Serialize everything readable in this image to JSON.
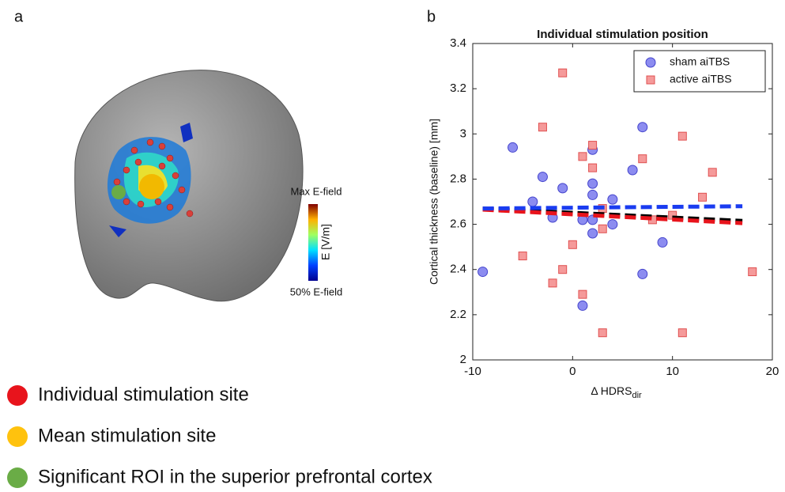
{
  "panel_labels": [
    "a",
    "b"
  ],
  "brain_figure": {
    "colorbar": {
      "top_label": "Max E-field",
      "axis_label": "E [V/m]",
      "bottom_label": "50% E-field"
    },
    "legend": [
      {
        "label": "Individual stimulation site",
        "color": "#e8141c"
      },
      {
        "label": "Mean stimulation site",
        "color": "#ffc20e"
      },
      {
        "label": "Significant ROI in the superior prefrontal cortex",
        "color": "#6aac46"
      }
    ]
  },
  "chart_data": {
    "type": "scatter",
    "title": "Individual stimulation position",
    "xlabel": "Δ HDRS",
    "xlabel_sub": "dir",
    "ylabel": "Cortical thickness (baseline) [mm]",
    "xlim": [
      -10,
      20
    ],
    "xticks": [
      -10,
      0,
      10,
      20
    ],
    "ylim": [
      2,
      3.4
    ],
    "yticks": [
      2,
      2.2,
      2.4,
      2.6,
      2.8,
      3,
      3.2,
      3.4
    ],
    "legend": "upper right",
    "series": [
      {
        "name": "sham aiTBS",
        "color": "#8c8cf0",
        "marker": "circle",
        "x": [
          -9,
          -6,
          -4,
          -3,
          -2,
          -1,
          1,
          1,
          2,
          2,
          2,
          2,
          2,
          4,
          4,
          6,
          7,
          7,
          9
        ],
        "values": [
          2.39,
          2.94,
          2.7,
          2.81,
          2.63,
          2.76,
          2.24,
          2.62,
          2.93,
          2.78,
          2.73,
          2.62,
          2.56,
          2.71,
          2.6,
          2.84,
          3.03,
          2.38,
          2.52
        ]
      },
      {
        "name": "active aiTBS",
        "color": "#f59a9a",
        "marker": "square",
        "x": [
          -5,
          -3,
          -2,
          -1,
          -1,
          0,
          1,
          1,
          2,
          2,
          3,
          3,
          3,
          7,
          8,
          10,
          11,
          11,
          13,
          14,
          18
        ],
        "values": [
          2.46,
          3.03,
          2.34,
          3.27,
          2.4,
          2.51,
          2.9,
          2.29,
          2.85,
          2.95,
          2.58,
          2.12,
          2.67,
          2.89,
          2.62,
          2.64,
          2.99,
          2.12,
          2.72,
          2.83,
          2.39
        ]
      }
    ],
    "fit_lines": [
      {
        "color": "#000000",
        "x": [
          -9,
          17
        ],
        "values": [
          2.67,
          2.615
        ]
      },
      {
        "color": "#e8141c",
        "x": [
          -9,
          17
        ],
        "values": [
          2.665,
          2.605
        ]
      },
      {
        "color": "#1a3cf0",
        "x": [
          -9,
          17
        ],
        "values": [
          2.67,
          2.68
        ]
      }
    ]
  }
}
